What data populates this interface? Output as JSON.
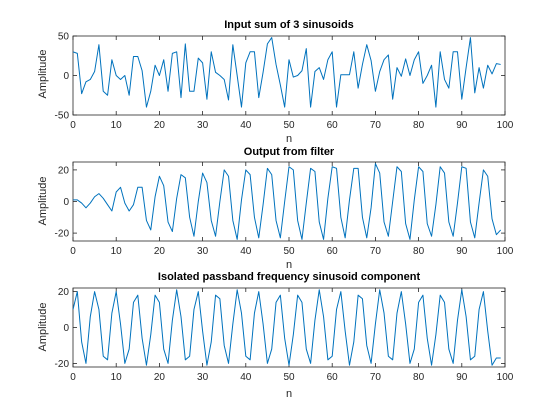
{
  "chart_data": [
    {
      "type": "line",
      "title": "Input sum of 3 sinusoids",
      "xlabel": "n",
      "ylabel": "Amplitude",
      "xlim": [
        0,
        100
      ],
      "ylim": [
        -50,
        50
      ],
      "xticks": [
        0,
        10,
        20,
        30,
        40,
        50,
        60,
        70,
        80,
        90,
        100
      ],
      "yticks": [
        -50,
        0,
        50
      ],
      "grid": false,
      "line_color": "#0072BD",
      "series": [
        {
          "values": [
            30,
            28,
            -23,
            -8,
            -5,
            5,
            39,
            -20,
            -25,
            20,
            0,
            -5,
            0,
            -25,
            24,
            24,
            6,
            -40,
            -20,
            13,
            0,
            20,
            -20,
            28,
            30,
            -28,
            40,
            -20,
            -20,
            22,
            16,
            -30,
            30,
            4,
            0,
            -5,
            -31,
            39,
            0,
            -40,
            16,
            30,
            30,
            -28,
            4,
            40,
            48,
            14,
            -12,
            -40,
            20,
            -2,
            0,
            6,
            34,
            -40,
            5,
            10,
            -5,
            20,
            30,
            -40,
            1,
            1,
            1,
            30,
            -16,
            14,
            39,
            19,
            -20,
            5,
            20,
            26,
            -30,
            10,
            -1,
            21,
            0,
            20,
            30,
            -10,
            0,
            13,
            -40,
            30,
            -5,
            -16,
            30,
            30,
            -30,
            10,
            48,
            -22,
            10,
            -16,
            13,
            2,
            15,
            14
          ]
        }
      ]
    },
    {
      "type": "line",
      "title": "Output from filter",
      "xlabel": "n",
      "ylabel": "Amplitude",
      "xlim": [
        0,
        100
      ],
      "ylim": [
        -25,
        25
      ],
      "xticks": [
        0,
        10,
        20,
        30,
        40,
        50,
        60,
        70,
        80,
        90,
        100
      ],
      "yticks": [
        -20,
        0,
        20
      ],
      "grid": false,
      "line_color": "#0072BD",
      "series": [
        {
          "values": [
            1,
            1,
            -1,
            -4,
            -1,
            3,
            5,
            2,
            -2,
            -6,
            6,
            9,
            -1,
            -6,
            -2,
            9,
            9,
            -12,
            -18,
            3,
            16,
            10,
            -13,
            -19,
            2,
            17,
            15,
            -10,
            -22,
            0,
            18,
            12,
            -12,
            -22,
            0,
            20,
            16,
            -12,
            -24,
            1,
            20,
            17,
            -10,
            -23,
            -2,
            21,
            17,
            -12,
            -23,
            0,
            22,
            20,
            -12,
            -24,
            -1,
            21,
            19,
            -13,
            -24,
            2,
            22,
            21,
            -10,
            -23,
            1,
            21,
            21,
            -10,
            -23,
            -4,
            24,
            18,
            -13,
            -22,
            0,
            22,
            19,
            -14,
            -24,
            1,
            22,
            19,
            -14,
            -22,
            -2,
            22,
            18,
            -13,
            -22,
            -1,
            22,
            21,
            -13,
            -23,
            -1,
            20,
            16,
            -11,
            -21,
            -18
          ]
        }
      ]
    },
    {
      "type": "line",
      "title": "Isolated passband frequency sinusoid component",
      "xlabel": "n",
      "ylabel": "Amplitude",
      "xlim": [
        0,
        100
      ],
      "ylim": [
        -22,
        22
      ],
      "xticks": [
        0,
        10,
        20,
        30,
        40,
        50,
        60,
        70,
        80,
        90,
        100
      ],
      "yticks": [
        -20,
        0,
        20
      ],
      "grid": false,
      "line_color": "#0072BD",
      "series": [
        {
          "values": [
            10,
            20,
            -8,
            -20,
            6,
            20,
            10,
            -16,
            -18,
            8,
            20,
            2,
            -20,
            -12,
            14,
            18,
            -6,
            -21,
            -4,
            18,
            14,
            -12,
            -20,
            4,
            21,
            6,
            -18,
            -16,
            10,
            20,
            -2,
            -21,
            -8,
            18,
            16,
            -10,
            -20,
            2,
            21,
            8,
            -16,
            -18,
            8,
            20,
            2,
            -20,
            -12,
            14,
            18,
            -6,
            -21,
            -4,
            18,
            14,
            -12,
            -20,
            4,
            21,
            6,
            -18,
            -16,
            10,
            20,
            -2,
            -21,
            -8,
            18,
            16,
            -10,
            -20,
            2,
            21,
            8,
            -16,
            -18,
            8,
            20,
            2,
            -20,
            -12,
            14,
            18,
            -6,
            -21,
            -4,
            18,
            14,
            -12,
            -20,
            4,
            21,
            6,
            -18,
            -16,
            10,
            20,
            -2,
            -21,
            -17,
            -17
          ]
        }
      ]
    }
  ]
}
